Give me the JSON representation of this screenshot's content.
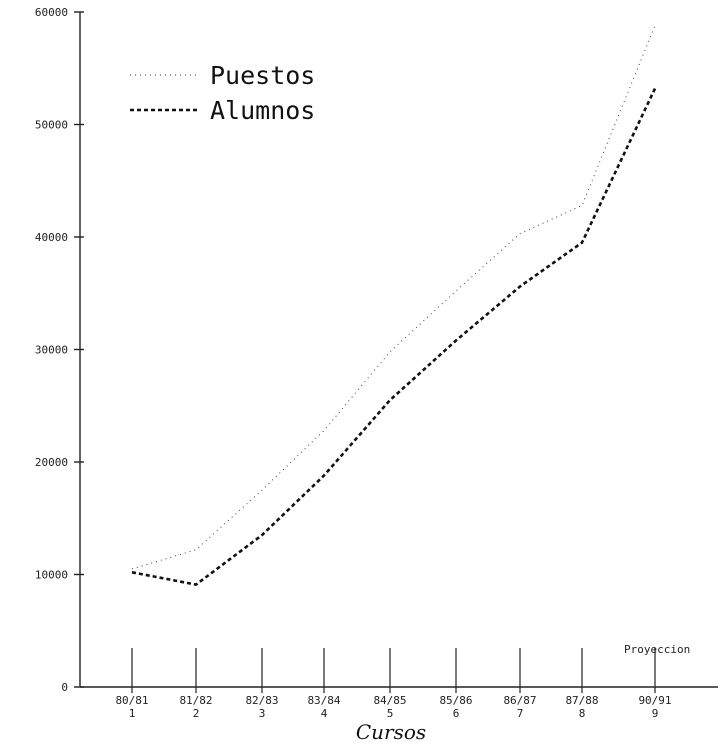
{
  "chart_data": {
    "type": "line",
    "xlabel": "Cursos",
    "ylabel": "",
    "ylim": [
      0,
      60000
    ],
    "yticks": [
      0,
      10000,
      20000,
      30000,
      40000,
      50000,
      60000
    ],
    "ytick_labels": [
      "0",
      "10000",
      "20000",
      "30000",
      "40000",
      "50000",
      "60000"
    ],
    "categories": [
      "80/81",
      "81/82",
      "82/83",
      "83/84",
      "84/85",
      "85/86",
      "86/87",
      "87/88",
      "90/91"
    ],
    "category_numbers": [
      "1",
      "2",
      "3",
      "4",
      "5",
      "6",
      "7",
      "8",
      "9"
    ],
    "series": [
      {
        "name": "Puestos",
        "style": "dotted",
        "values": [
          10500,
          12200,
          17500,
          22800,
          29800,
          35200,
          40300,
          42800,
          58800
        ]
      },
      {
        "name": "Alumnos",
        "style": "dashed",
        "values": [
          10200,
          9100,
          13500,
          18800,
          25500,
          30800,
          35600,
          39500,
          53200
        ]
      }
    ],
    "annotation": "Proyeccion",
    "legend_position": "top-left",
    "grid": false
  }
}
